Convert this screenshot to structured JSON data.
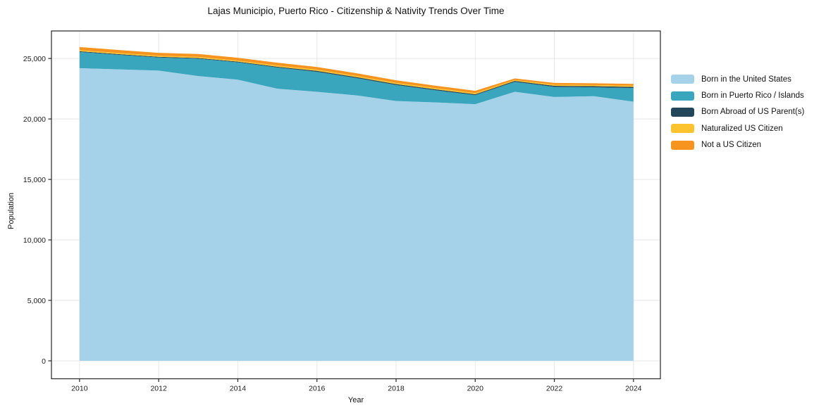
{
  "figure": {
    "background": "#ffffff",
    "spine_color": "#262626",
    "grid_color": "#e0e0e0"
  },
  "chart_data": {
    "type": "area",
    "stacked": true,
    "title": "Lajas Municipio, Puerto Rico - Citizenship & Nativity Trends Over Time",
    "xlabel": "Year",
    "ylabel": "Population",
    "x": [
      2010,
      2011,
      2012,
      2013,
      2014,
      2015,
      2016,
      2017,
      2018,
      2019,
      2020,
      2021,
      2022,
      2023,
      2024
    ],
    "series": [
      {
        "name": "Born in the United States",
        "color": "#a5d2e8",
        "values": [
          24200,
          24100,
          24000,
          23550,
          23250,
          22500,
          22250,
          21950,
          21480,
          21370,
          21220,
          22250,
          21820,
          21880,
          21430
        ]
      },
      {
        "name": "Born in Puerto Rico / Islands",
        "color": "#3aa6bd",
        "values": [
          1340,
          1200,
          1080,
          1430,
          1430,
          1750,
          1650,
          1430,
          1330,
          1000,
          750,
          820,
          830,
          740,
          1130
        ]
      },
      {
        "name": "Born Abroad of US Parent(s)",
        "color": "#24465a",
        "values": [
          60,
          60,
          60,
          60,
          60,
          70,
          80,
          80,
          80,
          80,
          70,
          80,
          90,
          90,
          90
        ]
      },
      {
        "name": "Naturalized US Citizen",
        "color": "#fcc32e",
        "values": [
          90,
          90,
          90,
          90,
          90,
          100,
          100,
          100,
          100,
          100,
          100,
          70,
          90,
          90,
          100
        ]
      },
      {
        "name": "Not a US Citizen",
        "color": "#f6941f",
        "values": [
          260,
          250,
          240,
          240,
          230,
          230,
          220,
          220,
          210,
          200,
          190,
          130,
          150,
          150,
          150
        ]
      }
    ],
    "totals": [
      25950,
      25700,
      25470,
      25370,
      25060,
      24650,
      24300,
      23780,
      23200,
      22750,
      22330,
      23350,
      22980,
      22950,
      22900
    ],
    "x_ticks": [
      2010,
      2012,
      2014,
      2016,
      2018,
      2020,
      2022,
      2024
    ],
    "y_ticks": [
      0,
      5000,
      10000,
      15000,
      20000,
      25000
    ],
    "y_tick_labels": [
      "0",
      "5,000",
      "10,000",
      "15,000",
      "20,000",
      "25,000"
    ],
    "xlim": [
      2009.29,
      2024.68
    ],
    "ylim": [
      -1484,
      27278
    ],
    "grid": true,
    "legend_position": "outside-right-top"
  }
}
